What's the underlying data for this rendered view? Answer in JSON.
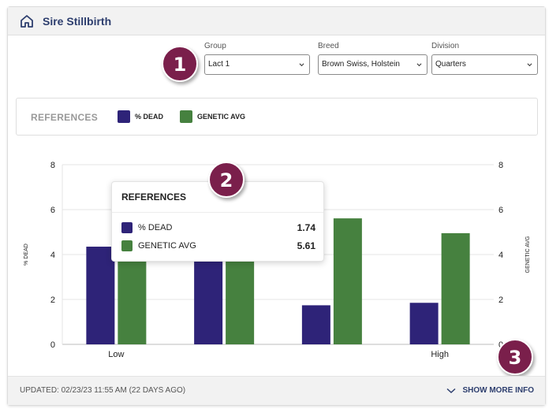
{
  "header": {
    "title": "Sire Stillbirth",
    "home_icon": "home-icon"
  },
  "filters": {
    "group": {
      "label": "Group",
      "value": "Lact 1"
    },
    "breed": {
      "label": "Breed",
      "value": "Brown Swiss, Holstein"
    },
    "division": {
      "label": "Division",
      "value": "Quarters"
    }
  },
  "callouts": [
    "1",
    "2",
    "3"
  ],
  "references": {
    "label": "REFERENCES",
    "items": [
      {
        "name": "% DEAD",
        "color": "#2e2378"
      },
      {
        "name": "GENETIC AVG",
        "color": "#46813f"
      }
    ]
  },
  "tooltip": {
    "title": "REFERENCES",
    "rows": [
      {
        "name": "% DEAD",
        "value": "1.74",
        "color": "#2e2378"
      },
      {
        "name": "GENETIC AVG",
        "value": "5.61",
        "color": "#46813f"
      }
    ]
  },
  "chart_data": {
    "type": "bar",
    "categories": [
      "Low",
      "",
      "",
      "High"
    ],
    "series": [
      {
        "name": "% DEAD",
        "values": [
          4.35,
          4.4,
          1.74,
          1.85
        ],
        "color": "#2e2378"
      },
      {
        "name": "GENETIC AVG",
        "values": [
          4.35,
          4.4,
          5.61,
          4.95
        ],
        "color": "#46813f"
      }
    ],
    "ylabel": "% DEAD",
    "y2label": "GENETIC AVG",
    "ylim": [
      0,
      8
    ],
    "yticks": [
      0,
      2,
      4,
      6,
      8
    ],
    "grid": true
  },
  "footer": {
    "updated": "UPDATED: 02/23/23 11:55 AM (22 DAYS AGO)",
    "show_more": "SHOW MORE INFO"
  }
}
